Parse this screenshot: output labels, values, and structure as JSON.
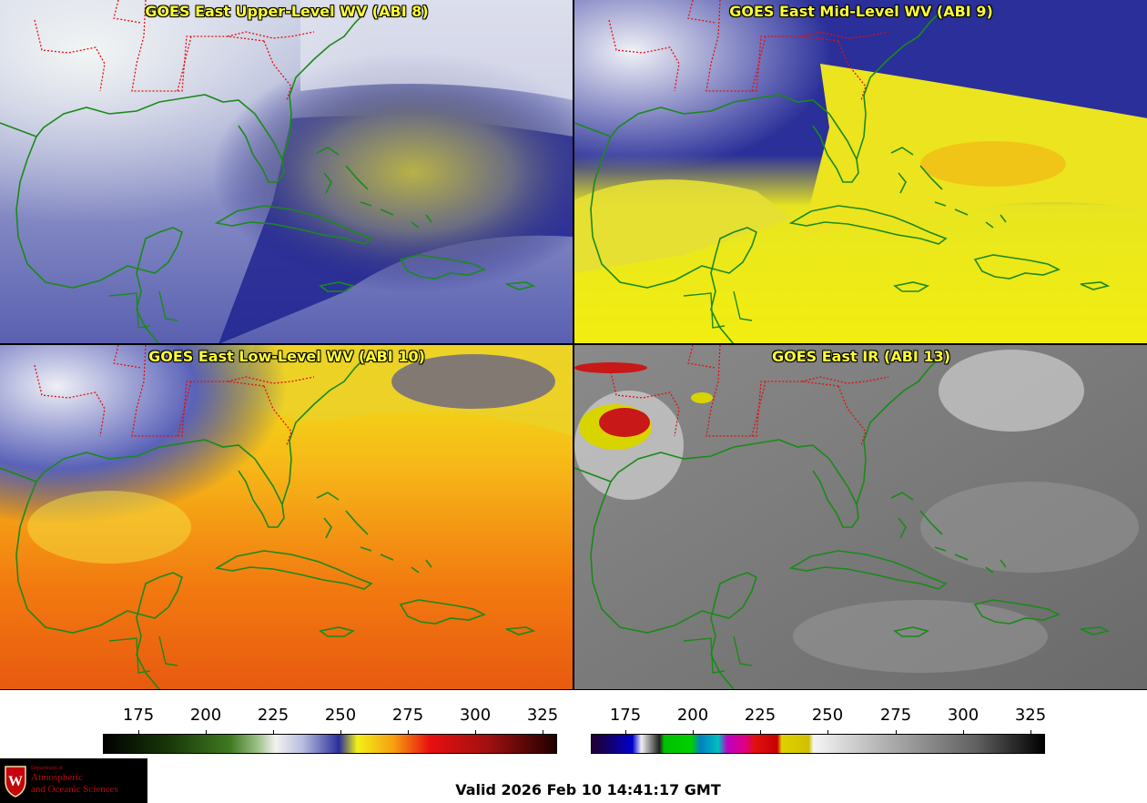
{
  "panels": [
    {
      "title": "GOES East Upper-Level WV (ABI 8)"
    },
    {
      "title": "GOES East Mid-Level WV (ABI 9)"
    },
    {
      "title": "GOES East Low-Level WV (ABI 10)"
    },
    {
      "title": "GOES East IR (ABI 13)"
    }
  ],
  "colorbars": {
    "wv": {
      "ticks": [
        "175",
        "200",
        "225",
        "250",
        "275",
        "300",
        "325"
      ]
    },
    "ir": {
      "ticks": [
        "175",
        "200",
        "225",
        "250",
        "275",
        "300",
        "325"
      ]
    }
  },
  "logo": {
    "department": "Department of",
    "line1": "Atmospheric",
    "line2": "and Oceanic Sciences"
  },
  "footer": {
    "valid_time": "Valid 2026 Feb 10 14:41:17 GMT"
  },
  "colors": {
    "title_text": "#ffff33",
    "coast": "#1a8a1a",
    "borders": "#e01010",
    "accent": "#c5050c"
  }
}
